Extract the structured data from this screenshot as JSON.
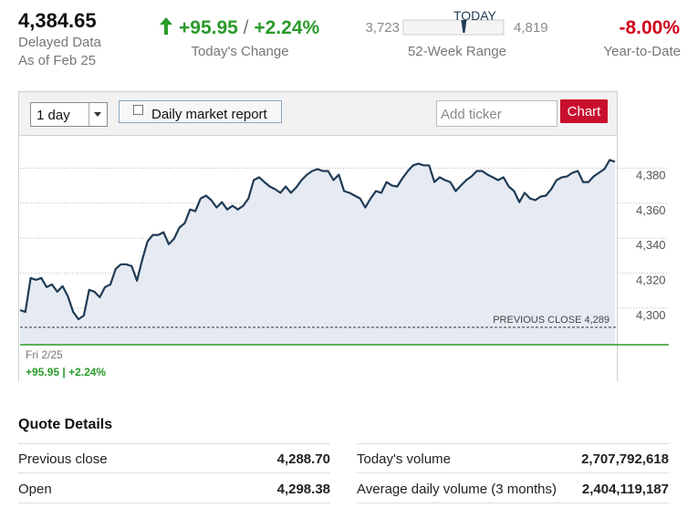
{
  "header": {
    "price": {
      "value": 4384.65,
      "label": "4,384.65"
    },
    "delayed": "Delayed Data",
    "as_of": "As of Feb 25",
    "change": "+95.95",
    "separator": "/",
    "change_pct": "+2.24%",
    "change_label": "Today's Change",
    "range_low": {
      "value": 3723,
      "label": "3,723"
    },
    "range_high": {
      "value": 4819,
      "label": "4,819"
    },
    "range_marker": "TODAY",
    "range_label": "52-Week Range",
    "ytd": "-8.00%",
    "ytd_label": "Year-to-Date"
  },
  "toolbar": {
    "period": "1 day",
    "report": "Daily market report",
    "ticker_placeholder": "Add ticker",
    "button": "Chart"
  },
  "chart_data": {
    "type": "line",
    "color": "#1f3b55",
    "fill": "#e6ebf3",
    "values": [
      4298.8,
      4297.8,
      4317.2,
      4316.1,
      4317.2,
      4312.0,
      4313.5,
      4309.3,
      4312.5,
      4306.7,
      4297.8,
      4293.6,
      4295.7,
      4310.4,
      4309.3,
      4306.2,
      4312.0,
      4313.5,
      4322.4,
      4325.0,
      4325.0,
      4324.0,
      4315.6,
      4327.6,
      4338.1,
      4341.8,
      4341.8,
      4343.4,
      4336.5,
      4339.7,
      4346.0,
      4348.6,
      4356.4,
      4355.4,
      4362.7,
      4364.3,
      4361.7,
      4357.5,
      4360.6,
      4356.4,
      4358.5,
      4356.4,
      4358.5,
      4362.7,
      4373.2,
      4374.8,
      4372.1,
      4369.5,
      4368.0,
      4365.9,
      4369.5,
      4365.9,
      4369.0,
      4373.2,
      4376.3,
      4378.4,
      4379.5,
      4378.4,
      4378.4,
      4373.2,
      4376.3,
      4366.9,
      4365.9,
      4364.3,
      4362.7,
      4357.5,
      4362.7,
      4366.9,
      4365.9,
      4372.1,
      4370.1,
      4369.5,
      4374.2,
      4378.4,
      4381.6,
      4382.6,
      4381.6,
      4381.6,
      4372.1,
      4374.8,
      4373.2,
      4372.1,
      4366.9,
      4370.1,
      4373.2,
      4375.3,
      4378.4,
      4378.4,
      4376.3,
      4374.8,
      4373.2,
      4374.8,
      4369.5,
      4366.9,
      4360.6,
      4365.9,
      4362.7,
      4361.7,
      4363.8,
      4364.3,
      4368.0,
      4373.2,
      4374.8,
      4375.3,
      4377.4,
      4378.4,
      4372.1,
      4372.1,
      4375.3,
      4377.4,
      4379.5,
      4384.7,
      4383.7
    ],
    "ylim": [
      4279,
      4399
    ],
    "yticks": [
      {
        "value": 4300,
        "label": "4,300"
      },
      {
        "value": 4320,
        "label": "4,320"
      },
      {
        "value": 4340,
        "label": "4,340"
      },
      {
        "value": 4360,
        "label": "4,360"
      },
      {
        "value": 4380,
        "label": "4,380"
      }
    ],
    "grid": true,
    "previous_close": {
      "value": 4289,
      "label": "PREVIOUS CLOSE 4,289"
    },
    "date_label": "Fri 2/25",
    "change_label": "+95.95 | +2.24%"
  },
  "quote_details": {
    "title": "Quote Details",
    "left": [
      [
        "Previous close",
        "4,288.70"
      ],
      [
        "Open",
        "4,298.38"
      ]
    ],
    "right": [
      [
        "Today's volume",
        "2,707,792,618"
      ],
      [
        "Average daily volume (3 months)",
        "2,404,119,187"
      ]
    ]
  }
}
